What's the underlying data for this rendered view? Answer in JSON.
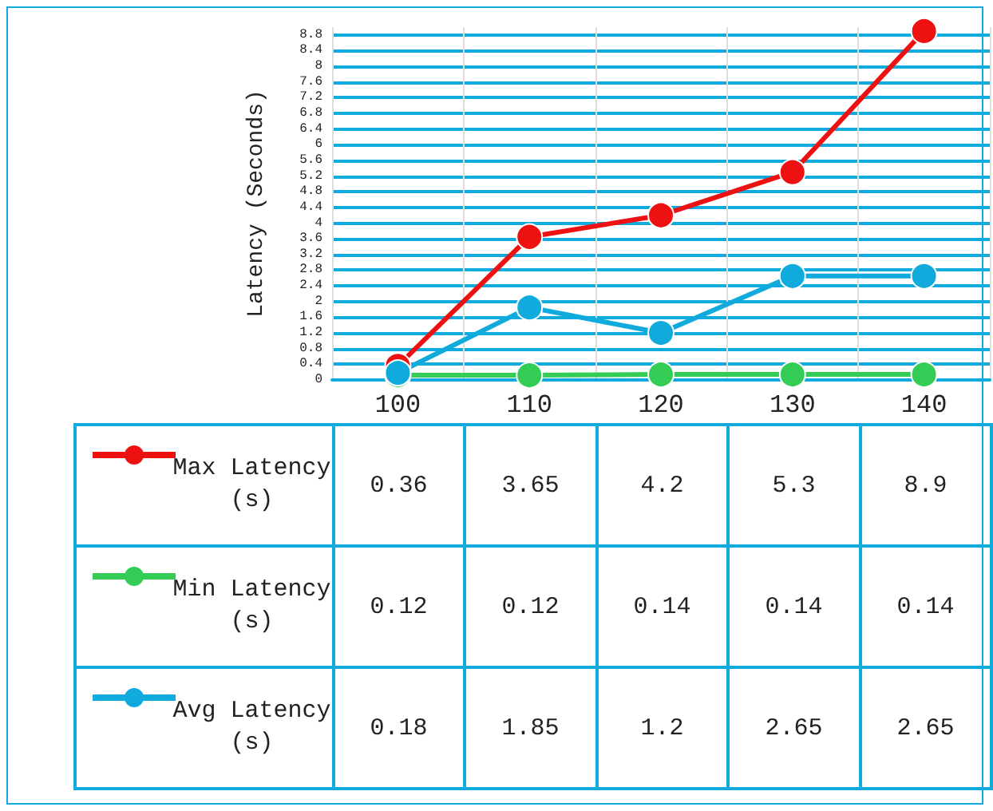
{
  "chart_data": {
    "type": "line",
    "ylabel": "Latency (Seconds)",
    "categories": [
      "100",
      "110",
      "120",
      "130",
      "140"
    ],
    "series": [
      {
        "name": "Max Latency (s)",
        "color": "#ee1111",
        "values": [
          0.36,
          3.65,
          4.2,
          5.3,
          8.9
        ]
      },
      {
        "name": "Min Latency (s)",
        "color": "#33cc55",
        "values": [
          0.12,
          0.12,
          0.14,
          0.14,
          0.14
        ]
      },
      {
        "name": "Avg Latency (s)",
        "color": "#11aadd",
        "values": [
          0.18,
          1.85,
          1.2,
          2.65,
          2.65
        ]
      }
    ],
    "ylim": [
      0,
      9
    ],
    "yticks": [
      0,
      0.4,
      0.8,
      1.2,
      1.6,
      2,
      2.4,
      2.8,
      3.2,
      3.6,
      4,
      4.4,
      4.8,
      5.2,
      5.6,
      6,
      6.4,
      6.8,
      7.2,
      7.6,
      8,
      8.4,
      8.8
    ],
    "grid": true,
    "legend": "bottom",
    "marker": "circle",
    "line_style": "solid",
    "data_labels": true
  }
}
